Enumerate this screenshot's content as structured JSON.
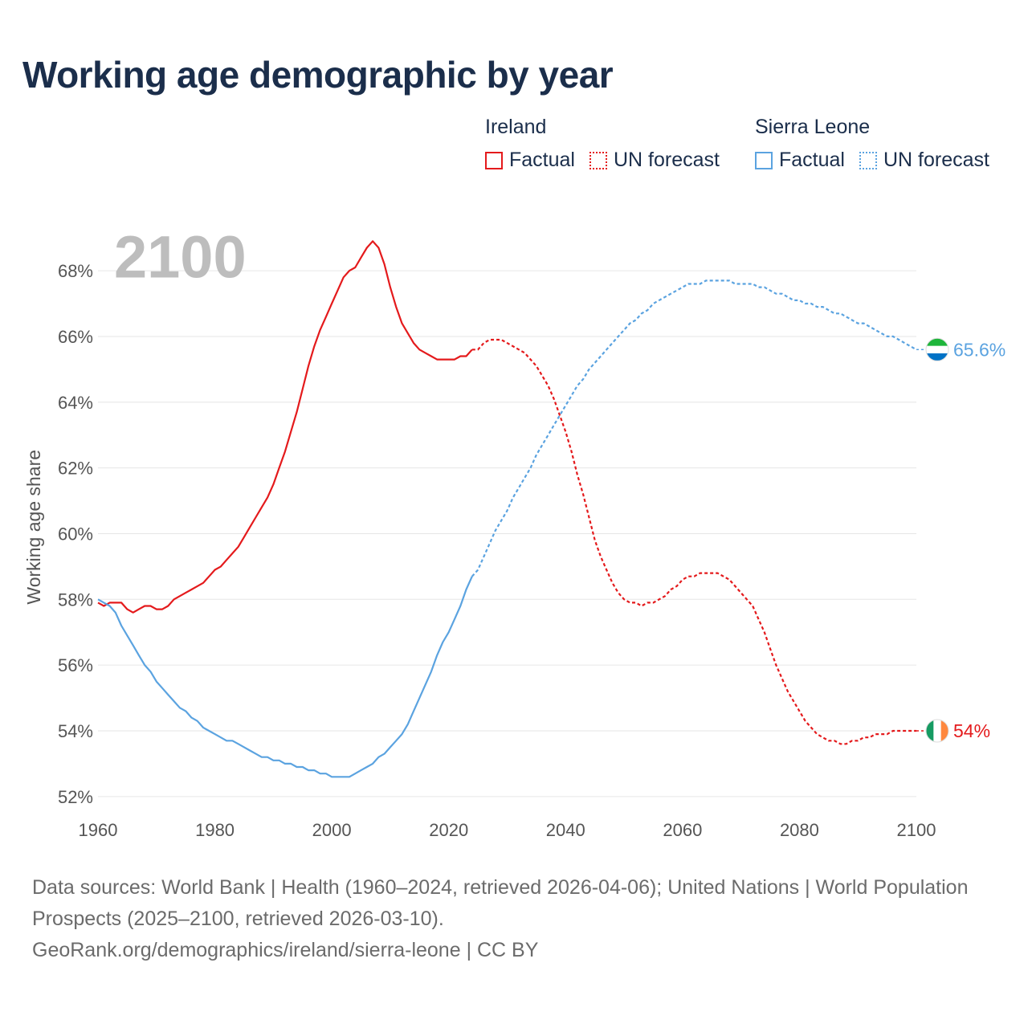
{
  "title": "Working age demographic by year",
  "legend": {
    "ireland": {
      "title": "Ireland",
      "factual": "Factual",
      "forecast": "UN forecast",
      "color": "#e41a1c"
    },
    "sierra_leone": {
      "title": "Sierra Leone",
      "factual": "Factual",
      "forecast": "UN forecast",
      "color": "#5ba3e0"
    }
  },
  "footer": {
    "sources": "Data sources: World Bank | Health (1960–2024, retrieved 2026-04-06); United Nations | World Population Prospects (2025–2100, retrieved 2026-03-10).",
    "link": "GeoRank.org/demographics/ireland/sierra-leone | CC BY"
  },
  "chart_data": {
    "type": "line",
    "title": "Working age demographic by year",
    "xlabel": "",
    "ylabel": "Working age share",
    "xlim": [
      1960,
      2100
    ],
    "ylim": [
      51.8,
      69.2
    ],
    "x_ticks": [
      1960,
      1980,
      2000,
      2020,
      2040,
      2060,
      2080,
      2100
    ],
    "x_tick_labels": [
      "1960",
      "1980",
      "2000",
      "2020",
      "2040",
      "2060",
      "2080",
      "2100"
    ],
    "y_ticks": [
      52,
      54,
      56,
      58,
      60,
      62,
      64,
      66,
      68
    ],
    "y_tick_labels": [
      "52%",
      "54%",
      "56%",
      "58%",
      "60%",
      "62%",
      "64%",
      "66%",
      "68%"
    ],
    "grid": true,
    "current_year_label": "2100",
    "factual_end_year": 2024,
    "series": [
      {
        "name": "Ireland",
        "color": "#e41a1c",
        "end_label": "54%",
        "flag_colors": [
          "#169b62",
          "#ffffff",
          "#ff883e"
        ],
        "points": [
          [
            1960,
            57.9
          ],
          [
            1961,
            57.8
          ],
          [
            1962,
            57.9
          ],
          [
            1963,
            57.9
          ],
          [
            1964,
            57.9
          ],
          [
            1965,
            57.7
          ],
          [
            1966,
            57.6
          ],
          [
            1967,
            57.7
          ],
          [
            1968,
            57.8
          ],
          [
            1969,
            57.8
          ],
          [
            1970,
            57.7
          ],
          [
            1971,
            57.7
          ],
          [
            1972,
            57.8
          ],
          [
            1973,
            58.0
          ],
          [
            1974,
            58.1
          ],
          [
            1975,
            58.2
          ],
          [
            1976,
            58.3
          ],
          [
            1977,
            58.4
          ],
          [
            1978,
            58.5
          ],
          [
            1979,
            58.7
          ],
          [
            1980,
            58.9
          ],
          [
            1981,
            59.0
          ],
          [
            1982,
            59.2
          ],
          [
            1983,
            59.4
          ],
          [
            1984,
            59.6
          ],
          [
            1985,
            59.9
          ],
          [
            1986,
            60.2
          ],
          [
            1987,
            60.5
          ],
          [
            1988,
            60.8
          ],
          [
            1989,
            61.1
          ],
          [
            1990,
            61.5
          ],
          [
            1991,
            62.0
          ],
          [
            1992,
            62.5
          ],
          [
            1993,
            63.1
          ],
          [
            1994,
            63.7
          ],
          [
            1995,
            64.4
          ],
          [
            1996,
            65.1
          ],
          [
            1997,
            65.7
          ],
          [
            1998,
            66.2
          ],
          [
            1999,
            66.6
          ],
          [
            2000,
            67.0
          ],
          [
            2001,
            67.4
          ],
          [
            2002,
            67.8
          ],
          [
            2003,
            68.0
          ],
          [
            2004,
            68.1
          ],
          [
            2005,
            68.4
          ],
          [
            2006,
            68.7
          ],
          [
            2007,
            68.9
          ],
          [
            2008,
            68.7
          ],
          [
            2009,
            68.2
          ],
          [
            2010,
            67.5
          ],
          [
            2011,
            66.9
          ],
          [
            2012,
            66.4
          ],
          [
            2013,
            66.1
          ],
          [
            2014,
            65.8
          ],
          [
            2015,
            65.6
          ],
          [
            2016,
            65.5
          ],
          [
            2017,
            65.4
          ],
          [
            2018,
            65.3
          ],
          [
            2019,
            65.3
          ],
          [
            2020,
            65.3
          ],
          [
            2021,
            65.3
          ],
          [
            2022,
            65.4
          ],
          [
            2023,
            65.4
          ],
          [
            2024,
            65.6
          ],
          [
            2025,
            65.6
          ],
          [
            2026,
            65.8
          ],
          [
            2027,
            65.9
          ],
          [
            2028,
            65.9
          ],
          [
            2029,
            65.9
          ],
          [
            2030,
            65.8
          ],
          [
            2031,
            65.7
          ],
          [
            2032,
            65.6
          ],
          [
            2033,
            65.5
          ],
          [
            2034,
            65.3
          ],
          [
            2035,
            65.1
          ],
          [
            2036,
            64.8
          ],
          [
            2037,
            64.5
          ],
          [
            2038,
            64.1
          ],
          [
            2039,
            63.6
          ],
          [
            2040,
            63.1
          ],
          [
            2041,
            62.5
          ],
          [
            2042,
            61.8
          ],
          [
            2043,
            61.2
          ],
          [
            2044,
            60.5
          ],
          [
            2045,
            59.8
          ],
          [
            2046,
            59.3
          ],
          [
            2047,
            58.9
          ],
          [
            2048,
            58.5
          ],
          [
            2049,
            58.2
          ],
          [
            2050,
            58.0
          ],
          [
            2051,
            57.9
          ],
          [
            2052,
            57.9
          ],
          [
            2053,
            57.8
          ],
          [
            2054,
            57.9
          ],
          [
            2055,
            57.9
          ],
          [
            2056,
            58.0
          ],
          [
            2057,
            58.1
          ],
          [
            2058,
            58.3
          ],
          [
            2059,
            58.4
          ],
          [
            2060,
            58.6
          ],
          [
            2061,
            58.7
          ],
          [
            2062,
            58.7
          ],
          [
            2063,
            58.8
          ],
          [
            2064,
            58.8
          ],
          [
            2065,
            58.8
          ],
          [
            2066,
            58.8
          ],
          [
            2067,
            58.7
          ],
          [
            2068,
            58.6
          ],
          [
            2069,
            58.4
          ],
          [
            2070,
            58.2
          ],
          [
            2071,
            58.0
          ],
          [
            2072,
            57.8
          ],
          [
            2073,
            57.4
          ],
          [
            2074,
            57.0
          ],
          [
            2075,
            56.5
          ],
          [
            2076,
            56.0
          ],
          [
            2077,
            55.6
          ],
          [
            2078,
            55.2
          ],
          [
            2079,
            54.9
          ],
          [
            2080,
            54.6
          ],
          [
            2081,
            54.3
          ],
          [
            2082,
            54.1
          ],
          [
            2083,
            53.9
          ],
          [
            2084,
            53.8
          ],
          [
            2085,
            53.7
          ],
          [
            2086,
            53.7
          ],
          [
            2087,
            53.6
          ],
          [
            2088,
            53.6
          ],
          [
            2089,
            53.7
          ],
          [
            2090,
            53.7
          ],
          [
            2091,
            53.8
          ],
          [
            2092,
            53.8
          ],
          [
            2093,
            53.9
          ],
          [
            2094,
            53.9
          ],
          [
            2095,
            53.9
          ],
          [
            2096,
            54.0
          ],
          [
            2097,
            54.0
          ],
          [
            2098,
            54.0
          ],
          [
            2099,
            54.0
          ],
          [
            2100,
            54.0
          ]
        ]
      },
      {
        "name": "Sierra Leone",
        "color": "#5ba3e0",
        "end_label": "65.6%",
        "flag_colors": [
          "#1eb53a",
          "#ffffff",
          "#0072c6"
        ],
        "points": [
          [
            1960,
            58.0
          ],
          [
            1961,
            57.9
          ],
          [
            1962,
            57.8
          ],
          [
            1963,
            57.6
          ],
          [
            1964,
            57.2
          ],
          [
            1965,
            56.9
          ],
          [
            1966,
            56.6
          ],
          [
            1967,
            56.3
          ],
          [
            1968,
            56.0
          ],
          [
            1969,
            55.8
          ],
          [
            1970,
            55.5
          ],
          [
            1971,
            55.3
          ],
          [
            1972,
            55.1
          ],
          [
            1973,
            54.9
          ],
          [
            1974,
            54.7
          ],
          [
            1975,
            54.6
          ],
          [
            1976,
            54.4
          ],
          [
            1977,
            54.3
          ],
          [
            1978,
            54.1
          ],
          [
            1979,
            54.0
          ],
          [
            1980,
            53.9
          ],
          [
            1981,
            53.8
          ],
          [
            1982,
            53.7
          ],
          [
            1983,
            53.7
          ],
          [
            1984,
            53.6
          ],
          [
            1985,
            53.5
          ],
          [
            1986,
            53.4
          ],
          [
            1987,
            53.3
          ],
          [
            1988,
            53.2
          ],
          [
            1989,
            53.2
          ],
          [
            1990,
            53.1
          ],
          [
            1991,
            53.1
          ],
          [
            1992,
            53.0
          ],
          [
            1993,
            53.0
          ],
          [
            1994,
            52.9
          ],
          [
            1995,
            52.9
          ],
          [
            1996,
            52.8
          ],
          [
            1997,
            52.8
          ],
          [
            1998,
            52.7
          ],
          [
            1999,
            52.7
          ],
          [
            2000,
            52.6
          ],
          [
            2001,
            52.6
          ],
          [
            2002,
            52.6
          ],
          [
            2003,
            52.6
          ],
          [
            2004,
            52.7
          ],
          [
            2005,
            52.8
          ],
          [
            2006,
            52.9
          ],
          [
            2007,
            53.0
          ],
          [
            2008,
            53.2
          ],
          [
            2009,
            53.3
          ],
          [
            2010,
            53.5
          ],
          [
            2011,
            53.7
          ],
          [
            2012,
            53.9
          ],
          [
            2013,
            54.2
          ],
          [
            2014,
            54.6
          ],
          [
            2015,
            55.0
          ],
          [
            2016,
            55.4
          ],
          [
            2017,
            55.8
          ],
          [
            2018,
            56.3
          ],
          [
            2019,
            56.7
          ],
          [
            2020,
            57.0
          ],
          [
            2021,
            57.4
          ],
          [
            2022,
            57.8
          ],
          [
            2023,
            58.3
          ],
          [
            2024,
            58.7
          ],
          [
            2025,
            58.9
          ],
          [
            2026,
            59.3
          ],
          [
            2027,
            59.7
          ],
          [
            2028,
            60.1
          ],
          [
            2029,
            60.4
          ],
          [
            2030,
            60.7
          ],
          [
            2031,
            61.1
          ],
          [
            2032,
            61.4
          ],
          [
            2033,
            61.7
          ],
          [
            2034,
            62.0
          ],
          [
            2035,
            62.4
          ],
          [
            2036,
            62.7
          ],
          [
            2037,
            63.0
          ],
          [
            2038,
            63.3
          ],
          [
            2039,
            63.6
          ],
          [
            2040,
            63.9
          ],
          [
            2041,
            64.2
          ],
          [
            2042,
            64.5
          ],
          [
            2043,
            64.7
          ],
          [
            2044,
            65.0
          ],
          [
            2045,
            65.2
          ],
          [
            2046,
            65.4
          ],
          [
            2047,
            65.6
          ],
          [
            2048,
            65.8
          ],
          [
            2049,
            66.0
          ],
          [
            2050,
            66.2
          ],
          [
            2051,
            66.4
          ],
          [
            2052,
            66.5
          ],
          [
            2053,
            66.7
          ],
          [
            2054,
            66.8
          ],
          [
            2055,
            67.0
          ],
          [
            2056,
            67.1
          ],
          [
            2057,
            67.2
          ],
          [
            2058,
            67.3
          ],
          [
            2059,
            67.4
          ],
          [
            2060,
            67.5
          ],
          [
            2061,
            67.6
          ],
          [
            2062,
            67.6
          ],
          [
            2063,
            67.6
          ],
          [
            2064,
            67.7
          ],
          [
            2065,
            67.7
          ],
          [
            2066,
            67.7
          ],
          [
            2067,
            67.7
          ],
          [
            2068,
            67.7
          ],
          [
            2069,
            67.6
          ],
          [
            2070,
            67.6
          ],
          [
            2071,
            67.6
          ],
          [
            2072,
            67.6
          ],
          [
            2073,
            67.5
          ],
          [
            2074,
            67.5
          ],
          [
            2075,
            67.4
          ],
          [
            2076,
            67.3
          ],
          [
            2077,
            67.3
          ],
          [
            2078,
            67.2
          ],
          [
            2079,
            67.1
          ],
          [
            2080,
            67.1
          ],
          [
            2081,
            67.0
          ],
          [
            2082,
            67.0
          ],
          [
            2083,
            66.9
          ],
          [
            2084,
            66.9
          ],
          [
            2085,
            66.8
          ],
          [
            2086,
            66.7
          ],
          [
            2087,
            66.7
          ],
          [
            2088,
            66.6
          ],
          [
            2089,
            66.5
          ],
          [
            2090,
            66.4
          ],
          [
            2091,
            66.4
          ],
          [
            2092,
            66.3
          ],
          [
            2093,
            66.2
          ],
          [
            2094,
            66.1
          ],
          [
            2095,
            66.0
          ],
          [
            2096,
            66.0
          ],
          [
            2097,
            65.9
          ],
          [
            2098,
            65.8
          ],
          [
            2099,
            65.7
          ],
          [
            2100,
            65.6
          ]
        ]
      }
    ]
  }
}
